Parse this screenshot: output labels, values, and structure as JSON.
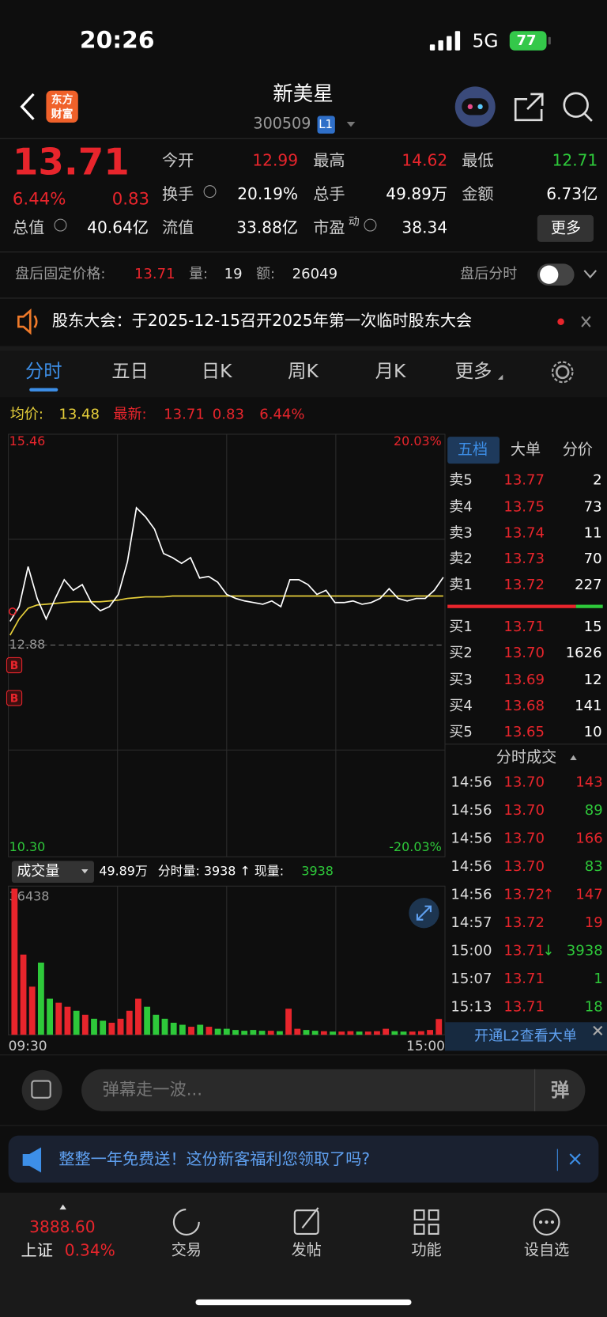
{
  "status_bar": {
    "time": "20:26",
    "network": "5G",
    "battery": "77"
  },
  "header": {
    "logo": [
      "东方",
      "财富"
    ],
    "title": "新美星",
    "code": "300509",
    "level": "L1"
  },
  "quote": {
    "price": "13.71",
    "change_pct": "6.44%",
    "change": "0.83",
    "stats": [
      {
        "label": "今开",
        "value": "12.99",
        "color": "#e8252c"
      },
      {
        "label": "最高",
        "value": "14.62",
        "color": "#e8252c"
      },
      {
        "label": "最低",
        "value": "12.71",
        "color": "#2ec93a"
      },
      {
        "label": "换手",
        "value": "20.19%",
        "color": "#ffffff"
      },
      {
        "label": "总手",
        "value": "49.89万",
        "color": "#ffffff"
      },
      {
        "label": "金额",
        "value": "6.73亿",
        "color": "#ffffff"
      },
      {
        "label": "总值",
        "value": "40.64亿",
        "color": "#ffffff"
      },
      {
        "label": "流值",
        "value": "33.88亿",
        "color": "#ffffff"
      },
      {
        "label": "市盈",
        "sup": "动",
        "value": "38.34",
        "color": "#ffffff"
      }
    ],
    "more": "更多"
  },
  "after_hours": {
    "label": "盘后固定价格:",
    "price": "13.71",
    "volume_label": "量:",
    "volume": "19",
    "amount_label": "额:",
    "amount": "26049",
    "toggle_label": "盘后分时"
  },
  "notice": "股东大会：于2025-12-15召开2025年第一次临时股东大会",
  "tabs": [
    "分时",
    "五日",
    "日K",
    "周K",
    "月K",
    "更多"
  ],
  "legend": {
    "avg_label": "均价:",
    "avg": "13.48",
    "last_label": "最新:",
    "last": "13.71",
    "change": "0.83",
    "change_pct": "6.44%"
  },
  "chart_data": [
    {
      "type": "line",
      "ylim": [
        10.3,
        15.46
      ],
      "yticks": [
        15.46,
        12.88,
        {
          "value": 10.3,
          "label": "10.30"
        }
      ],
      "y2lim": [
        -20.03,
        20.03
      ],
      "y2ticks": [
        {
          "value": 20.03,
          "label": "20.03%"
        },
        {
          "value": -20.03,
          "label": "-20.03%"
        }
      ],
      "series": [
        {
          "color": "#ffffff",
          "values": [
            13.17,
            13.35,
            13.84,
            13.45,
            13.2,
            13.45,
            13.68,
            13.55,
            13.62,
            13.4,
            13.3,
            13.35,
            13.5,
            13.9,
            14.56,
            14.45,
            14.3,
            14.0,
            13.95,
            13.88,
            13.95,
            13.7,
            13.72,
            13.65,
            13.5,
            13.45,
            13.42,
            13.4,
            13.38,
            13.42,
            13.35,
            13.68,
            13.68,
            13.62,
            13.5,
            13.55,
            13.4,
            13.4,
            13.42,
            13.38,
            13.4,
            13.45,
            13.57,
            13.45,
            13.42,
            13.45,
            13.45,
            13.55,
            13.71
          ]
        },
        {
          "color": "#e6cf3a",
          "values": [
            13.0,
            13.2,
            13.33,
            13.37,
            13.38,
            13.39,
            13.4,
            13.41,
            13.41,
            13.41,
            13.41,
            13.42,
            13.43,
            13.45,
            13.46,
            13.47,
            13.47,
            13.47,
            13.48,
            13.48,
            13.48,
            13.48,
            13.48,
            13.48,
            13.48,
            13.48,
            13.48,
            13.48,
            13.48,
            13.48,
            13.48,
            13.48,
            13.48,
            13.48,
            13.48,
            13.48,
            13.48,
            13.48,
            13.48,
            13.48,
            13.48,
            13.48,
            13.48,
            13.48,
            13.48,
            13.48,
            13.48,
            13.48,
            13.48
          ]
        }
      ],
      "markers": [
        "B",
        "B"
      ]
    },
    {
      "type": "bar",
      "ylim": [
        0,
        36438
      ],
      "yticks": [
        36438
      ],
      "up_color": "#e8252c",
      "down_color": "#2ec93a",
      "categories": [
        "09:30",
        null,
        null,
        null,
        null,
        null,
        null,
        null,
        null,
        null,
        null,
        null,
        null,
        null,
        null,
        null,
        null,
        null,
        null,
        null,
        null,
        null,
        null,
        null,
        null,
        null,
        null,
        null,
        null,
        null,
        null,
        null,
        null,
        null,
        null,
        null,
        null,
        null,
        null,
        null,
        null,
        null,
        null,
        null,
        null,
        null,
        null,
        null,
        "15:00"
      ],
      "values": [
        36438,
        20000,
        12000,
        18000,
        9000,
        8000,
        7000,
        6000,
        5000,
        4000,
        3500,
        3000,
        4000,
        6000,
        9000,
        7000,
        5000,
        4000,
        3000,
        2500,
        2000,
        2500,
        2000,
        1500,
        1500,
        1200,
        1000,
        1200,
        1000,
        1000,
        900,
        6500,
        1500,
        1200,
        1000,
        900,
        800,
        800,
        900,
        800,
        800,
        900,
        1500,
        900,
        800,
        800,
        900,
        1200,
        3938
      ]
    }
  ],
  "volume_header": {
    "selector": "成交量",
    "total": "49.89万",
    "detail": "分时量: 3938 ↑ 现量:",
    "current": "3938"
  },
  "order_book": {
    "tabs": [
      "五档",
      "大单",
      "分价"
    ],
    "asks": [
      [
        "卖5",
        "13.77",
        "2"
      ],
      [
        "卖4",
        "13.75",
        "73"
      ],
      [
        "卖3",
        "13.74",
        "11"
      ],
      [
        "卖2",
        "13.73",
        "70"
      ],
      [
        "卖1",
        "13.72",
        "227"
      ]
    ],
    "bids": [
      [
        "买1",
        "13.71",
        "15"
      ],
      [
        "买2",
        "13.70",
        "1626"
      ],
      [
        "买3",
        "13.69",
        "12"
      ],
      [
        "买4",
        "13.68",
        "141"
      ],
      [
        "买5",
        "13.65",
        "10"
      ]
    ]
  },
  "trades": {
    "title": "分时成交",
    "rows": [
      {
        "time": "14:56",
        "price": "13.70",
        "volume": "143",
        "color": "#e8252c"
      },
      {
        "time": "14:56",
        "price": "13.70",
        "volume": "89",
        "color": "#2ec93a"
      },
      {
        "time": "14:56",
        "price": "13.70",
        "volume": "166",
        "color": "#e8252c"
      },
      {
        "time": "14:56",
        "price": "13.70",
        "volume": "83",
        "color": "#2ec93a"
      },
      {
        "time": "14:56",
        "price": "13.72",
        "arrow": "↑",
        "volume": "147",
        "color": "#e8252c"
      },
      {
        "time": "14:57",
        "price": "13.72",
        "volume": "19",
        "color": "#e8252c"
      },
      {
        "time": "15:00",
        "price": "13.71",
        "arrow": "↓",
        "volume": "3938",
        "color": "#2ec93a"
      },
      {
        "time": "15:07",
        "price": "13.71",
        "volume": "1",
        "color": "#2ec93a"
      },
      {
        "time": "15:13",
        "price": "13.71",
        "volume": "18",
        "color": "#2ec93a"
      }
    ]
  },
  "l2_banner": "开通L2查看大单",
  "comment": {
    "placeholder": "弹幕走一波...",
    "button": "弹"
  },
  "ad": "整整一年免费送！这份新客福利您领取了吗?",
  "bottom_nav": {
    "index_value": "3888.60",
    "index_name": "上证",
    "index_pct": "0.34%",
    "items": [
      "交易",
      "发帖",
      "功能",
      "设自选"
    ]
  }
}
